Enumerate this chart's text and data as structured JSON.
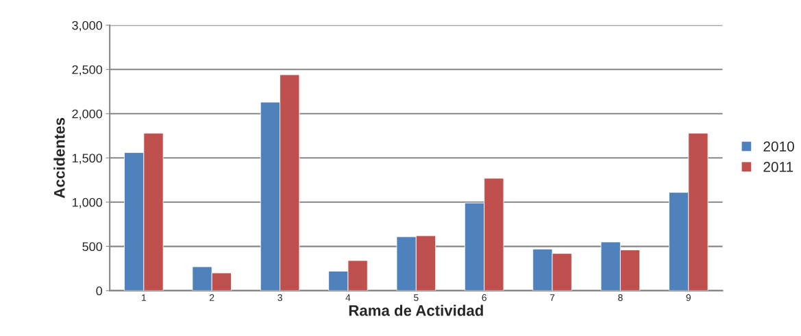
{
  "chart_data": {
    "type": "bar",
    "xlabel": "Rama de Actividad",
    "ylabel": "Accidentes",
    "categories": [
      "1",
      "2",
      "3",
      "4",
      "5",
      "6",
      "7",
      "8",
      "9"
    ],
    "series": [
      {
        "name": "2010",
        "color": "#4f81bd",
        "values": [
          1560,
          270,
          2130,
          220,
          610,
          990,
          470,
          550,
          1110
        ]
      },
      {
        "name": "2011",
        "color": "#c0504d",
        "values": [
          1780,
          200,
          2440,
          340,
          620,
          1270,
          420,
          460,
          1780
        ]
      }
    ],
    "ylim": [
      0,
      3000
    ],
    "yticks": [
      {
        "value": 0,
        "label": "0"
      },
      {
        "value": 500,
        "label": "500"
      },
      {
        "value": 1000,
        "label": "1,000"
      },
      {
        "value": 1500,
        "label": "1,500"
      },
      {
        "value": 2000,
        "label": "2,000"
      },
      {
        "value": 2500,
        "label": "2,500"
      },
      {
        "value": 3000,
        "label": "3,000"
      }
    ],
    "grid": "y",
    "legend": "right"
  }
}
